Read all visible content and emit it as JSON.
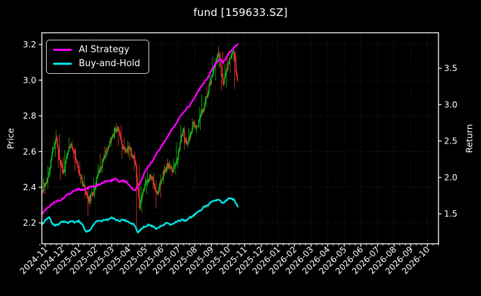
{
  "title": "fund [159633.SZ]",
  "legend": {
    "items": [
      {
        "label": "AI Strategy",
        "color": "#ff00ff"
      },
      {
        "label": "Buy-and-Hold",
        "color": "#00e5e5"
      }
    ]
  },
  "chart_data": {
    "type": "candlestick+line",
    "title": "fund [159633.SZ]",
    "xlabel": "",
    "grid": true,
    "legend_position": "upper-left",
    "background": "#000000",
    "resolution": "weekly approximation read from pixels (original is daily)",
    "x_tick_labels": [
      "2024-11",
      "2024-12",
      "2025-01",
      "2025-02",
      "2025-03",
      "2025-04",
      "2025-05",
      "2025-06",
      "2025-07",
      "2025-08",
      "2025-09",
      "2025-10",
      "2025-11",
      "2025-12",
      "2026-01",
      "2026-02",
      "2026-03",
      "2026-04",
      "2026-05",
      "2026-06",
      "2026-07",
      "2026-08",
      "2026-09",
      "2026-10"
    ],
    "data_span": {
      "first_point": "2024-11",
      "last_point": "2025-11"
    },
    "left_axis": {
      "label": "Price",
      "ticks": [
        3.2,
        3.0,
        2.8,
        2.6,
        2.4,
        2.2
      ],
      "range": [
        2.083,
        3.266
      ]
    },
    "right_axis": {
      "label": "Return",
      "ticks": [
        3.5,
        3.0,
        2.5,
        2.0,
        1.5
      ],
      "range": [
        1.089,
        3.988
      ]
    },
    "colors": {
      "up": "#17b517",
      "down": "#ec3232",
      "spine": "#ffffff",
      "grid": "#ffffff"
    },
    "candles_weekly": {
      "axis": "left",
      "columns": [
        "open",
        "high",
        "low",
        "close"
      ],
      "ohlc": [
        [
          2.38,
          2.45,
          2.36,
          2.41
        ],
        [
          2.41,
          2.52,
          2.39,
          2.48
        ],
        [
          2.48,
          2.63,
          2.46,
          2.6
        ],
        [
          2.6,
          2.72,
          2.57,
          2.68
        ],
        [
          2.68,
          2.7,
          2.51,
          2.55
        ],
        [
          2.55,
          2.57,
          2.44,
          2.48
        ],
        [
          2.48,
          2.61,
          2.46,
          2.58
        ],
        [
          2.58,
          2.68,
          2.56,
          2.64
        ],
        [
          2.64,
          2.66,
          2.56,
          2.6
        ],
        [
          2.6,
          2.62,
          2.49,
          2.52
        ],
        [
          2.52,
          2.54,
          2.42,
          2.45
        ],
        [
          2.45,
          2.47,
          2.34,
          2.38
        ],
        [
          2.38,
          2.4,
          2.24,
          2.32
        ],
        [
          2.32,
          2.39,
          2.29,
          2.36
        ],
        [
          2.36,
          2.45,
          2.34,
          2.42
        ],
        [
          2.42,
          2.53,
          2.4,
          2.5
        ],
        [
          2.5,
          2.59,
          2.48,
          2.56
        ],
        [
          2.56,
          2.63,
          2.54,
          2.6
        ],
        [
          2.6,
          2.68,
          2.58,
          2.65
        ],
        [
          2.65,
          2.73,
          2.63,
          2.7
        ],
        [
          2.7,
          2.76,
          2.67,
          2.74
        ],
        [
          2.74,
          2.75,
          2.63,
          2.66
        ],
        [
          2.66,
          2.68,
          2.56,
          2.6
        ],
        [
          2.6,
          2.66,
          2.57,
          2.63
        ],
        [
          2.63,
          2.65,
          2.55,
          2.58
        ],
        [
          2.58,
          2.6,
          2.49,
          2.52
        ],
        [
          2.52,
          2.53,
          2.16,
          2.28
        ],
        [
          2.28,
          2.41,
          2.26,
          2.38
        ],
        [
          2.38,
          2.46,
          2.36,
          2.43
        ],
        [
          2.43,
          2.49,
          2.41,
          2.46
        ],
        [
          2.46,
          2.48,
          2.39,
          2.42
        ],
        [
          2.42,
          2.44,
          2.28,
          2.36
        ],
        [
          2.36,
          2.47,
          2.34,
          2.44
        ],
        [
          2.44,
          2.53,
          2.42,
          2.5
        ],
        [
          2.5,
          2.56,
          2.48,
          2.53
        ],
        [
          2.53,
          2.55,
          2.46,
          2.49
        ],
        [
          2.49,
          2.56,
          2.47,
          2.53
        ],
        [
          2.53,
          2.65,
          2.51,
          2.62
        ],
        [
          2.62,
          2.75,
          2.6,
          2.72
        ],
        [
          2.72,
          2.74,
          2.61,
          2.64
        ],
        [
          2.64,
          2.73,
          2.62,
          2.7
        ],
        [
          2.7,
          2.79,
          2.68,
          2.76
        ],
        [
          2.76,
          2.78,
          2.7,
          2.74
        ],
        [
          2.74,
          2.85,
          2.72,
          2.82
        ],
        [
          2.82,
          2.92,
          2.8,
          2.87
        ],
        [
          2.87,
          2.97,
          2.85,
          2.94
        ],
        [
          2.94,
          3.05,
          2.92,
          3.02
        ],
        [
          3.02,
          3.13,
          3.0,
          3.1
        ],
        [
          3.1,
          3.19,
          3.07,
          3.15
        ],
        [
          3.15,
          3.16,
          2.94,
          2.98
        ],
        [
          2.98,
          3.09,
          2.96,
          3.06
        ],
        [
          3.06,
          3.15,
          3.04,
          3.12
        ],
        [
          3.12,
          3.18,
          3.1,
          3.16
        ],
        [
          3.16,
          3.17,
          2.95,
          3.0
        ]
      ]
    },
    "series": [
      {
        "name": "AI Strategy",
        "color": "#ff00ff",
        "axis": "right",
        "values": [
          1.5,
          1.55,
          1.6,
          1.65,
          1.67,
          1.69,
          1.72,
          1.77,
          1.79,
          1.82,
          1.84,
          1.83,
          1.84,
          1.87,
          1.87,
          1.89,
          1.91,
          1.94,
          1.95,
          1.96,
          1.98,
          1.94,
          1.96,
          1.94,
          1.87,
          1.82,
          1.87,
          1.96,
          2.09,
          2.16,
          2.23,
          2.33,
          2.4,
          2.48,
          2.55,
          2.65,
          2.72,
          2.8,
          2.87,
          2.94,
          2.99,
          3.07,
          3.16,
          3.24,
          3.31,
          3.38,
          3.48,
          3.56,
          3.63,
          3.58,
          3.65,
          3.73,
          3.78,
          3.83
        ]
      },
      {
        "name": "Buy-and-Hold",
        "color": "#00e5e5",
        "axis": "right",
        "values": [
          1.35,
          1.42,
          1.45,
          1.35,
          1.34,
          1.38,
          1.4,
          1.38,
          1.4,
          1.38,
          1.4,
          1.35,
          1.25,
          1.28,
          1.35,
          1.4,
          1.4,
          1.42,
          1.42,
          1.45,
          1.42,
          1.4,
          1.42,
          1.4,
          1.38,
          1.35,
          1.25,
          1.3,
          1.33,
          1.35,
          1.33,
          1.3,
          1.33,
          1.35,
          1.38,
          1.35,
          1.38,
          1.4,
          1.42,
          1.4,
          1.45,
          1.47,
          1.52,
          1.55,
          1.6,
          1.62,
          1.67,
          1.69,
          1.69,
          1.65,
          1.69,
          1.72,
          1.69,
          1.6
        ]
      }
    ]
  }
}
